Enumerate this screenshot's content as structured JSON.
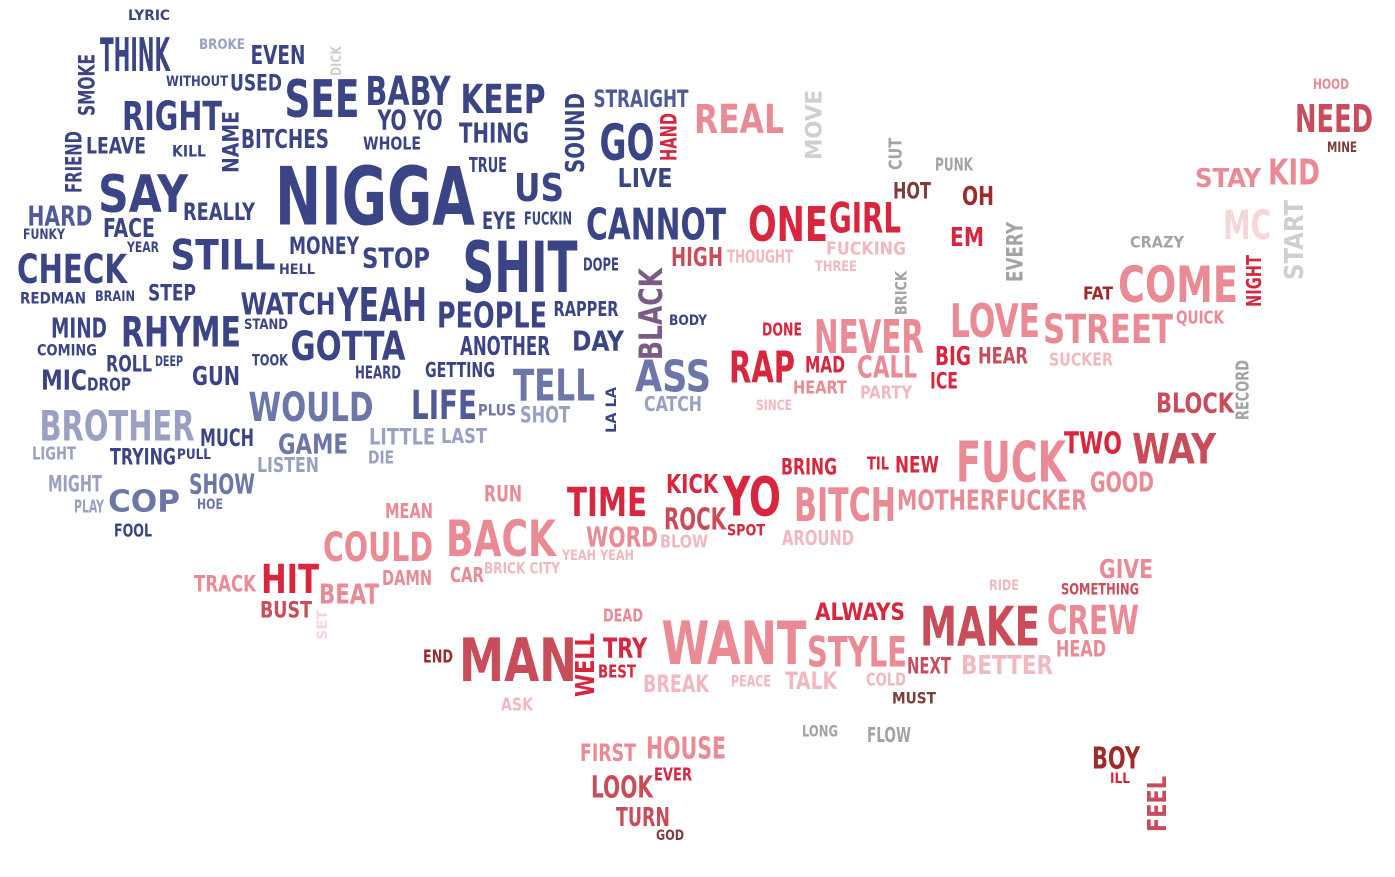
{
  "colors": {
    "navy": "#3b4484",
    "navy_mid": "#505a96",
    "slate": "#6d76a8",
    "slate_light": "#9aa0c2",
    "gray": "#a3a3a3",
    "gray_light": "#cfcfcf",
    "red": "#d7263d",
    "red_dark": "#9e2a2b",
    "red_mid": "#c94c5b",
    "pink": "#e98a95",
    "pink_light": "#f2b8bf",
    "pink_pale": "#f6d6d9",
    "maroon": "#7e3c3c",
    "purple": "#7b5a87"
  },
  "words": [
    {
      "text": "NIGGA",
      "color": "navy"
    },
    {
      "text": "SHIT",
      "color": "navy"
    },
    {
      "text": "YEAH",
      "color": "navy"
    },
    {
      "text": "SEE",
      "color": "navy"
    },
    {
      "text": "THINK",
      "color": "navy"
    },
    {
      "text": "RIGHT",
      "color": "navy"
    },
    {
      "text": "SAY",
      "color": "navy"
    },
    {
      "text": "STILL",
      "color": "navy"
    },
    {
      "text": "CHECK",
      "color": "navy"
    },
    {
      "text": "RHYME",
      "color": "navy"
    },
    {
      "text": "GOTTA",
      "color": "navy"
    },
    {
      "text": "PEOPLE",
      "color": "navy"
    },
    {
      "text": "BABY",
      "color": "navy"
    },
    {
      "text": "KEEP",
      "color": "navy"
    },
    {
      "text": "THING",
      "color": "navy"
    },
    {
      "text": "GO",
      "color": "navy"
    },
    {
      "text": "US",
      "color": "navy"
    },
    {
      "text": "CANNOT",
      "color": "navy"
    },
    {
      "text": "WATCH",
      "color": "navy"
    },
    {
      "text": "MONEY",
      "color": "navy"
    },
    {
      "text": "STOP",
      "color": "navy"
    },
    {
      "text": "BITCHES",
      "color": "navy"
    },
    {
      "text": "YO YO",
      "color": "navy"
    },
    {
      "text": "STRAIGHT",
      "color": "navy_mid"
    },
    {
      "text": "SOUND",
      "color": "navy"
    },
    {
      "text": "LIVE",
      "color": "navy"
    },
    {
      "text": "EVEN",
      "color": "navy"
    },
    {
      "text": "USED",
      "color": "navy"
    },
    {
      "text": "BROKE",
      "color": "slate_light"
    },
    {
      "text": "LYRIC",
      "color": "navy"
    },
    {
      "text": "DICK",
      "color": "gray_light"
    },
    {
      "text": "WITHOUT",
      "color": "navy"
    },
    {
      "text": "SMOKE",
      "color": "navy"
    },
    {
      "text": "FRIEND",
      "color": "navy"
    },
    {
      "text": "LEAVE",
      "color": "navy"
    },
    {
      "text": "KILL",
      "color": "navy"
    },
    {
      "text": "NAME",
      "color": "navy"
    },
    {
      "text": "WHOLE",
      "color": "navy"
    },
    {
      "text": "TRUE",
      "color": "navy"
    },
    {
      "text": "HARD",
      "color": "navy_mid"
    },
    {
      "text": "FUNKY",
      "color": "navy"
    },
    {
      "text": "FACE",
      "color": "navy"
    },
    {
      "text": "YEAR",
      "color": "navy"
    },
    {
      "text": "REALLY",
      "color": "navy"
    },
    {
      "text": "EYE",
      "color": "navy"
    },
    {
      "text": "FUCKIN",
      "color": "navy"
    },
    {
      "text": "HELL",
      "color": "navy"
    },
    {
      "text": "DOPE",
      "color": "navy"
    },
    {
      "text": "REDMAN",
      "color": "navy"
    },
    {
      "text": "BRAIN",
      "color": "navy"
    },
    {
      "text": "STEP",
      "color": "navy"
    },
    {
      "text": "MIND",
      "color": "navy"
    },
    {
      "text": "COMING",
      "color": "navy"
    },
    {
      "text": "STAND",
      "color": "navy"
    },
    {
      "text": "RAPPER",
      "color": "navy"
    },
    {
      "text": "BODY",
      "color": "navy"
    },
    {
      "text": "ROLL",
      "color": "navy"
    },
    {
      "text": "DEEP",
      "color": "navy"
    },
    {
      "text": "TOOK",
      "color": "navy"
    },
    {
      "text": "ANOTHER",
      "color": "navy"
    },
    {
      "text": "DAY",
      "color": "navy"
    },
    {
      "text": "MIC",
      "color": "navy"
    },
    {
      "text": "DROP",
      "color": "navy"
    },
    {
      "text": "GUN",
      "color": "navy"
    },
    {
      "text": "HEARD",
      "color": "navy"
    },
    {
      "text": "GETTING",
      "color": "navy"
    },
    {
      "text": "TELL",
      "color": "slate"
    },
    {
      "text": "ASS",
      "color": "slate"
    },
    {
      "text": "BLACK",
      "color": "purple"
    },
    {
      "text": "BROTHER",
      "color": "slate_light"
    },
    {
      "text": "WOULD",
      "color": "slate"
    },
    {
      "text": "LIFE",
      "color": "navy_mid"
    },
    {
      "text": "PLUS",
      "color": "slate"
    },
    {
      "text": "SHOT",
      "color": "slate_light"
    },
    {
      "text": "LA LA",
      "color": "navy"
    },
    {
      "text": "CATCH",
      "color": "slate_light"
    },
    {
      "text": "MUCH",
      "color": "navy"
    },
    {
      "text": "GAME",
      "color": "slate"
    },
    {
      "text": "LITTLE",
      "color": "slate_light"
    },
    {
      "text": "LAST",
      "color": "slate_light"
    },
    {
      "text": "LIGHT",
      "color": "slate_light"
    },
    {
      "text": "TRYING",
      "color": "navy"
    },
    {
      "text": "PULL",
      "color": "navy"
    },
    {
      "text": "LISTEN",
      "color": "slate_light"
    },
    {
      "text": "DIE",
      "color": "slate_light"
    },
    {
      "text": "MIGHT",
      "color": "slate_light"
    },
    {
      "text": "PLAY",
      "color": "slate_light"
    },
    {
      "text": "COP",
      "color": "slate"
    },
    {
      "text": "SHOW",
      "color": "slate"
    },
    {
      "text": "HOE",
      "color": "slate"
    },
    {
      "text": "FOOL",
      "color": "navy"
    },
    {
      "text": "HAND",
      "color": "red"
    },
    {
      "text": "REAL",
      "color": "pink"
    },
    {
      "text": "MOVE",
      "color": "gray_light"
    },
    {
      "text": "CUT",
      "color": "gray"
    },
    {
      "text": "PUNK",
      "color": "gray"
    },
    {
      "text": "HOT",
      "color": "maroon"
    },
    {
      "text": "OH",
      "color": "red_dark"
    },
    {
      "text": "ONE",
      "color": "red"
    },
    {
      "text": "GIRL",
      "color": "red"
    },
    {
      "text": "FUCKING",
      "color": "pink_light"
    },
    {
      "text": "THREE",
      "color": "pink_light"
    },
    {
      "text": "EM",
      "color": "red"
    },
    {
      "text": "EVERY",
      "color": "gray"
    },
    {
      "text": "HIGH",
      "color": "red_mid"
    },
    {
      "text": "THOUGHT",
      "color": "pink_light"
    },
    {
      "text": "BRICK",
      "color": "gray"
    },
    {
      "text": "CRAZY",
      "color": "gray"
    },
    {
      "text": "HOOD",
      "color": "pink"
    },
    {
      "text": "NEED",
      "color": "red_mid"
    },
    {
      "text": "MINE",
      "color": "maroon"
    },
    {
      "text": "STAY",
      "color": "pink"
    },
    {
      "text": "KID",
      "color": "pink"
    },
    {
      "text": "MC",
      "color": "pink_pale"
    },
    {
      "text": "START",
      "color": "gray_light"
    },
    {
      "text": "FAT",
      "color": "red_dark"
    },
    {
      "text": "COME",
      "color": "pink"
    },
    {
      "text": "NIGHT",
      "color": "red"
    },
    {
      "text": "QUICK",
      "color": "pink"
    },
    {
      "text": "NEVER",
      "color": "pink"
    },
    {
      "text": "LOVE",
      "color": "pink"
    },
    {
      "text": "STREET",
      "color": "pink"
    },
    {
      "text": "DONE",
      "color": "red"
    },
    {
      "text": "RAP",
      "color": "red"
    },
    {
      "text": "MAD",
      "color": "red"
    },
    {
      "text": "HEART",
      "color": "pink"
    },
    {
      "text": "CALL",
      "color": "pink"
    },
    {
      "text": "PARTY",
      "color": "pink_light"
    },
    {
      "text": "BIG",
      "color": "red"
    },
    {
      "text": "ICE",
      "color": "red"
    },
    {
      "text": "HEAR",
      "color": "red_mid"
    },
    {
      "text": "SUCKER",
      "color": "pink_light"
    },
    {
      "text": "SINCE",
      "color": "pink_light"
    },
    {
      "text": "RECORD",
      "color": "gray"
    },
    {
      "text": "BLOCK",
      "color": "red_mid"
    },
    {
      "text": "FUCK",
      "color": "pink"
    },
    {
      "text": "TWO",
      "color": "red"
    },
    {
      "text": "WAY",
      "color": "red_mid"
    },
    {
      "text": "TIL",
      "color": "red"
    },
    {
      "text": "NEW",
      "color": "red"
    },
    {
      "text": "BRING",
      "color": "red"
    },
    {
      "text": "GOOD",
      "color": "pink"
    },
    {
      "text": "MOTHERFUCKER",
      "color": "pink"
    },
    {
      "text": "KICK",
      "color": "red"
    },
    {
      "text": "YO",
      "color": "red"
    },
    {
      "text": "BITCH",
      "color": "pink"
    },
    {
      "text": "ROCK",
      "color": "red_mid"
    },
    {
      "text": "SPOT",
      "color": "red"
    },
    {
      "text": "AROUND",
      "color": "pink_light"
    },
    {
      "text": "TIME",
      "color": "red"
    },
    {
      "text": "RUN",
      "color": "pink"
    },
    {
      "text": "WORD",
      "color": "pink"
    },
    {
      "text": "BLOW",
      "color": "pink_light"
    },
    {
      "text": "BACK",
      "color": "pink"
    },
    {
      "text": "YEAH YEAH",
      "color": "pink_light"
    },
    {
      "text": "MEAN",
      "color": "pink"
    },
    {
      "text": "COULD",
      "color": "pink"
    },
    {
      "text": "BRICK CITY",
      "color": "pink_light"
    },
    {
      "text": "CAR",
      "color": "pink"
    },
    {
      "text": "DAMN",
      "color": "pink"
    },
    {
      "text": "HIT",
      "color": "red"
    },
    {
      "text": "BEAT",
      "color": "pink"
    },
    {
      "text": "TRACK",
      "color": "pink"
    },
    {
      "text": "BUST",
      "color": "red_mid"
    },
    {
      "text": "SET",
      "color": "pink_pale"
    },
    {
      "text": "GIVE",
      "color": "pink"
    },
    {
      "text": "RIDE",
      "color": "pink_light"
    },
    {
      "text": "SOMETHING",
      "color": "red_mid"
    },
    {
      "text": "ALWAYS",
      "color": "red"
    },
    {
      "text": "MAKE",
      "color": "red_mid"
    },
    {
      "text": "CREW",
      "color": "pink"
    },
    {
      "text": "HEAD",
      "color": "pink"
    },
    {
      "text": "STYLE",
      "color": "pink"
    },
    {
      "text": "WANT",
      "color": "pink"
    },
    {
      "text": "MAN",
      "color": "red_mid"
    },
    {
      "text": "WELL",
      "color": "red"
    },
    {
      "text": "TRY",
      "color": "red"
    },
    {
      "text": "BEST",
      "color": "red"
    },
    {
      "text": "END",
      "color": "red_dark"
    },
    {
      "text": "DEAD",
      "color": "pink"
    },
    {
      "text": "BREAK",
      "color": "pink_light"
    },
    {
      "text": "PEACE",
      "color": "pink_light"
    },
    {
      "text": "TALK",
      "color": "pink_light"
    },
    {
      "text": "COLD",
      "color": "pink_light"
    },
    {
      "text": "NEXT",
      "color": "red_mid"
    },
    {
      "text": "BETTER",
      "color": "pink_light"
    },
    {
      "text": "MUST",
      "color": "maroon"
    },
    {
      "text": "ASK",
      "color": "pink_light"
    },
    {
      "text": "LONG",
      "color": "gray"
    },
    {
      "text": "FLOW",
      "color": "gray"
    },
    {
      "text": "FIRST",
      "color": "pink"
    },
    {
      "text": "HOUSE",
      "color": "pink"
    },
    {
      "text": "LOOK",
      "color": "red_mid"
    },
    {
      "text": "EVER",
      "color": "red"
    },
    {
      "text": "TURN",
      "color": "red_mid"
    },
    {
      "text": "GOD",
      "color": "maroon"
    },
    {
      "text": "BOY",
      "color": "red_dark"
    },
    {
      "text": "ILL",
      "color": "red"
    },
    {
      "text": "FEEL",
      "color": "red_mid"
    }
  ]
}
